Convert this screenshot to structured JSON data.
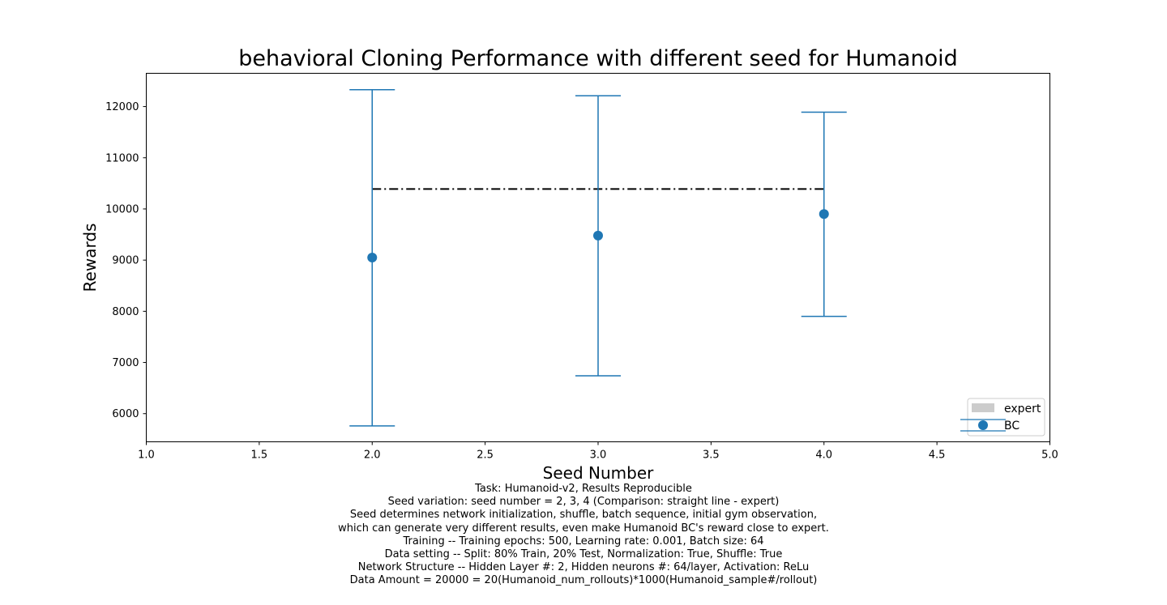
{
  "chart_data": {
    "type": "scatter",
    "title": "behavioral Cloning Performance with different seed for Humanoid",
    "xlabel": "Seed Number",
    "ylabel": "Rewards",
    "xlim": [
      1.0,
      5.0
    ],
    "ylim": [
      5450,
      12650
    ],
    "xticks": [
      "1.0",
      "1.5",
      "2.0",
      "2.5",
      "3.0",
      "3.5",
      "4.0",
      "4.5",
      "5.0"
    ],
    "yticks": [
      "6000",
      "7000",
      "8000",
      "9000",
      "10000",
      "11000",
      "12000"
    ],
    "legend_position": "lower-right",
    "grid": false,
    "series": [
      {
        "name": "BC",
        "style": "marker-with-errorbars",
        "color": "#1f77b4",
        "x": [
          2,
          3,
          4
        ],
        "y": [
          9050,
          9480,
          9900
        ],
        "y_lower": [
          5760,
          6740,
          7900
        ],
        "y_upper": [
          12330,
          12210,
          11890
        ]
      },
      {
        "name": "expert",
        "style": "dash-dot-line",
        "color": "#000000",
        "x": [
          2,
          4
        ],
        "y": [
          10390,
          10390
        ]
      }
    ]
  },
  "caption_lines": [
    "Task: Humanoid-v2, Results Reproducible",
    "Seed variation: seed number = 2, 3, 4 (Comparison: straight line - expert)",
    "Seed determines network initialization, shuffle, batch sequence, initial gym observation,",
    "which can generate very different results, even make Humanoid BC's reward close to expert.",
    "Training -- Training epochs: 500, Learning rate: 0.001, Batch size: 64",
    "Data setting -- Split: 80% Train, 20% Test, Normalization: True, Shuffle: True",
    "Network Structure -- Hidden Layer #: 2, Hidden neurons #: 64/layer, Activation: ReLu",
    "Data Amount = 20000 = 20(Humanoid_num_rollouts)*1000(Humanoid_sample#/rollout)"
  ]
}
